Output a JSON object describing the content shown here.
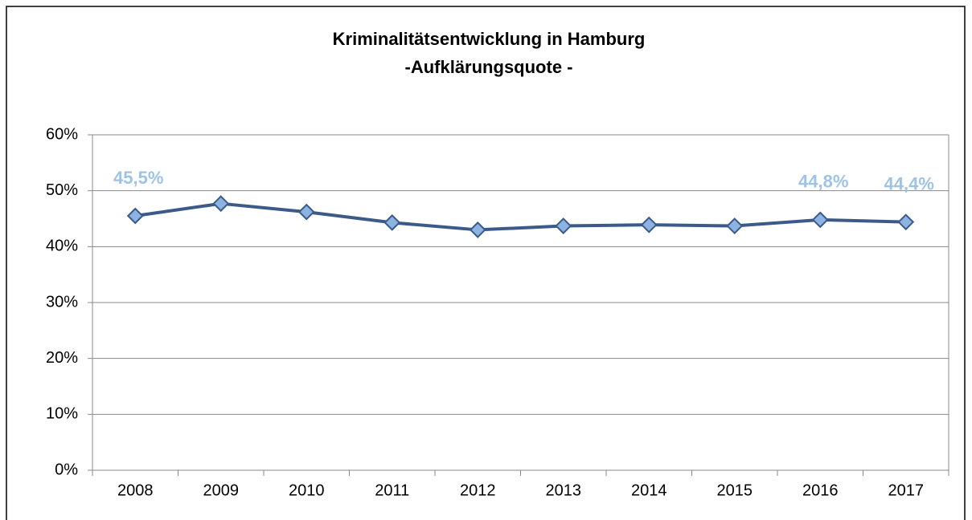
{
  "chart_data": {
    "type": "line",
    "title": "Kriminalitätsentwicklung in Hamburg",
    "subtitle": "-Aufklärungsquote -",
    "categories": [
      "2008",
      "2009",
      "2010",
      "2011",
      "2012",
      "2013",
      "2014",
      "2015",
      "2016",
      "2017"
    ],
    "series": [
      {
        "name": "Aufklärungsquote",
        "color": "#3b5a8a",
        "marker_color": "#8db3e2",
        "values": [
          45.5,
          47.7,
          46.2,
          44.3,
          43.0,
          43.7,
          43.9,
          43.7,
          44.8,
          44.4
        ],
        "value_labels": [
          "45,5%",
          null,
          null,
          null,
          null,
          null,
          null,
          null,
          "44,8%",
          "44,4%"
        ]
      }
    ],
    "ylim": [
      0,
      60
    ],
    "yticks": [
      {
        "value": 0,
        "label": "0%"
      },
      {
        "value": 10,
        "label": "10%"
      },
      {
        "value": 20,
        "label": "20%"
      },
      {
        "value": 30,
        "label": "30%"
      },
      {
        "value": 40,
        "label": "40%"
      },
      {
        "value": 50,
        "label": "50%"
      },
      {
        "value": 60,
        "label": "60%"
      }
    ],
    "grid": true
  }
}
